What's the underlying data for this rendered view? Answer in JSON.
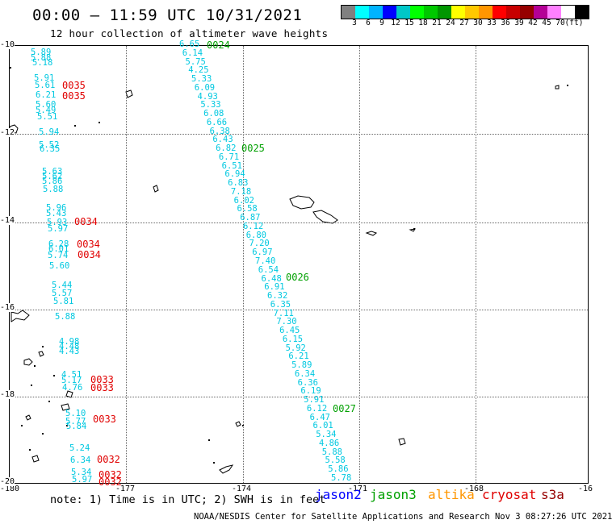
{
  "header": {
    "title": "00:00 — 11:59 UTC 10/31/2021",
    "subtitle": "12 hour collection of altimeter wave heights"
  },
  "colorbar": {
    "colors": [
      "#808080",
      "#00ffff",
      "#00b4ff",
      "#0000ff",
      "#00c8c8",
      "#00ff00",
      "#00c800",
      "#009600",
      "#ffff00",
      "#ffc800",
      "#ff9600",
      "#ff0000",
      "#c80000",
      "#960000",
      "#b40096",
      "#ff80ff",
      "#ffffff",
      "#000000"
    ],
    "labels": [
      "3",
      "6",
      "9",
      "12",
      "15",
      "18",
      "21",
      "24",
      "27",
      "30",
      "33",
      "36",
      "39",
      "42",
      "45",
      "70",
      "(ft)"
    ]
  },
  "axes": {
    "lon_labels": [
      "-180",
      "-177",
      "-174",
      "-171",
      "-168",
      "-16"
    ],
    "lat_labels": [
      "-10",
      "-12",
      "-14",
      "-16",
      "-18",
      "-20"
    ]
  },
  "passes": {
    "cyan_track": [
      "6.65",
      "6.14",
      "5.75",
      "4.25",
      "5.33",
      "6.09",
      "4.93",
      "5.33",
      "6.08",
      "6.66",
      "6.38",
      "6.43",
      "6.82",
      "6.71",
      "6.51",
      "6.94",
      "6.83",
      "7.18",
      "6.02",
      "6.58",
      "6.87",
      "6.12",
      "6.80",
      "7.20",
      "6.97",
      "7.40",
      "6.54",
      "6.48",
      "6.91",
      "6.32",
      "6.35",
      "7.11",
      "7.30",
      "6.45",
      "6.15",
      "5.92",
      "6.21",
      "5.89",
      "6.34",
      "6.36",
      "6.19",
      "5.91",
      "6.12",
      "6.47",
      "6.01",
      "5.34",
      "4.86",
      "5.88",
      "5.58",
      "5.86",
      "5.78"
    ],
    "cyan_left": [
      "5.89",
      "5.88",
      "5.18",
      "5.91",
      "5.61",
      "6.21",
      "5.60",
      "5.49",
      "5.51",
      "5.94",
      "5.52",
      "6.35",
      "5.63",
      "5.62",
      "5.86",
      "5.88",
      "5.96",
      "5.43",
      "5.93",
      "5.97",
      "6.28",
      "6.01",
      "5.74",
      "5.60",
      "5.44",
      "5.57",
      "5.81",
      "5.88",
      "4.98",
      "4.48",
      "4.43",
      "4.51",
      "5.17",
      "4.76",
      "5.10",
      "5.77",
      "5.84",
      "5.24",
      "6.34",
      "5.34",
      "5.97"
    ],
    "green_ids": [
      "0024",
      "0025",
      "0026",
      "0027"
    ],
    "red_ids": [
      "0035",
      "0035",
      "0034",
      "0034",
      "0034",
      "0033",
      "0033",
      "0033",
      "0032",
      "0032",
      "0032"
    ]
  },
  "footer": {
    "note": "note: 1) Time is in UTC; 2) SWH is in feet",
    "legend": [
      {
        "name": "jason2",
        "color": "#0000ff"
      },
      {
        "name": "jason3",
        "color": "#00a000"
      },
      {
        "name": "altika",
        "color": "#ff9600"
      },
      {
        "name": "cryosat",
        "color": "#e00000"
      },
      {
        "name": "s3a",
        "color": "#960000"
      }
    ],
    "credit": "NOAA/NESDIS Center for Satellite Applications and Research   Nov  3 08:27:26 UTC 2021"
  }
}
